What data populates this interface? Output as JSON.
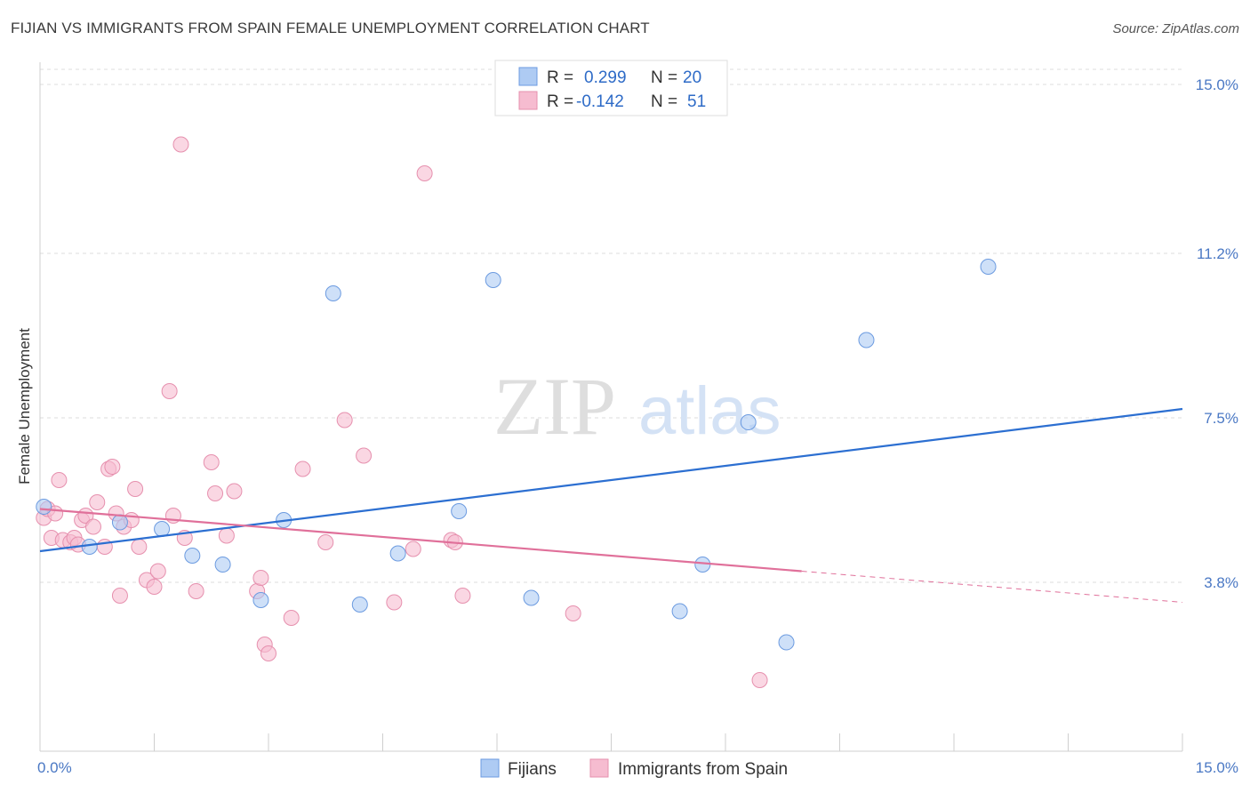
{
  "header": {
    "title": "FIJIAN VS IMMIGRANTS FROM SPAIN FEMALE UNEMPLOYMENT CORRELATION CHART",
    "source": "Source: ZipAtlas.com"
  },
  "watermark": {
    "zip": "ZIP",
    "atlas": "atlas"
  },
  "colors": {
    "fijians_fill": "#aecbf3",
    "fijians_stroke": "#6c9be0",
    "fijians_line": "#2c6fd1",
    "spain_fill": "#f6bcd0",
    "spain_stroke": "#e690ae",
    "spain_line": "#e0709a",
    "grid": "#dddddd",
    "axis_text": "#4a78c4"
  },
  "legend": {
    "r_label": "R =",
    "n_label": "N =",
    "fijians": {
      "r": "0.299",
      "n": "20"
    },
    "spain": {
      "r": "-0.142",
      "n": "51"
    }
  },
  "chart_data": {
    "type": "scatter",
    "title": "FIJIAN VS IMMIGRANTS FROM SPAIN FEMALE UNEMPLOYMENT CORRELATION CHART",
    "xlabel": "",
    "ylabel": "Female Unemployment",
    "xlim": [
      0,
      15
    ],
    "ylim": [
      0,
      15.5
    ],
    "x_tick_labels": [
      "0.0%",
      "15.0%"
    ],
    "y_ticks": [
      3.8,
      7.5,
      11.2,
      15.0
    ],
    "y_tick_labels": [
      "3.8%",
      "7.5%",
      "11.2%",
      "15.0%"
    ],
    "series": [
      {
        "name": "Fijians",
        "points": [
          [
            0.05,
            5.5
          ],
          [
            0.65,
            4.6
          ],
          [
            1.05,
            5.15
          ],
          [
            1.6,
            5.0
          ],
          [
            2.0,
            4.4
          ],
          [
            2.4,
            4.2
          ],
          [
            2.9,
            3.4
          ],
          [
            3.2,
            5.2
          ],
          [
            3.85,
            10.3
          ],
          [
            4.2,
            3.3
          ],
          [
            4.7,
            4.45
          ],
          [
            5.5,
            5.4
          ],
          [
            5.95,
            10.6
          ],
          [
            6.45,
            3.45
          ],
          [
            8.4,
            3.15
          ],
          [
            8.7,
            4.2
          ],
          [
            9.3,
            7.4
          ],
          [
            9.8,
            2.45
          ],
          [
            10.85,
            9.25
          ],
          [
            12.45,
            10.9
          ]
        ],
        "trend": {
          "x": [
            0,
            15
          ],
          "y": [
            4.5,
            7.7
          ]
        }
      },
      {
        "name": "Immigrants from Spain",
        "points": [
          [
            0.05,
            5.25
          ],
          [
            0.1,
            5.45
          ],
          [
            0.15,
            4.8
          ],
          [
            0.2,
            5.35
          ],
          [
            0.25,
            6.1
          ],
          [
            0.3,
            4.75
          ],
          [
            0.4,
            4.7
          ],
          [
            0.45,
            4.8
          ],
          [
            0.5,
            4.65
          ],
          [
            0.55,
            5.2
          ],
          [
            0.6,
            5.3
          ],
          [
            0.7,
            5.05
          ],
          [
            0.75,
            5.6
          ],
          [
            0.85,
            4.6
          ],
          [
            0.9,
            6.35
          ],
          [
            0.95,
            6.4
          ],
          [
            1.0,
            5.35
          ],
          [
            1.05,
            3.5
          ],
          [
            1.1,
            5.05
          ],
          [
            1.2,
            5.2
          ],
          [
            1.25,
            5.9
          ],
          [
            1.3,
            4.6
          ],
          [
            1.4,
            3.85
          ],
          [
            1.5,
            3.7
          ],
          [
            1.55,
            4.05
          ],
          [
            1.7,
            8.1
          ],
          [
            1.75,
            5.3
          ],
          [
            1.85,
            13.65
          ],
          [
            1.9,
            4.8
          ],
          [
            2.05,
            3.6
          ],
          [
            2.25,
            6.5
          ],
          [
            2.3,
            5.8
          ],
          [
            2.45,
            4.85
          ],
          [
            2.55,
            5.85
          ],
          [
            2.85,
            3.6
          ],
          [
            2.9,
            3.9
          ],
          [
            2.95,
            2.4
          ],
          [
            3.0,
            2.2
          ],
          [
            3.3,
            3.0
          ],
          [
            3.45,
            6.35
          ],
          [
            3.75,
            4.7
          ],
          [
            4.0,
            7.45
          ],
          [
            4.25,
            6.65
          ],
          [
            4.65,
            3.35
          ],
          [
            4.9,
            4.55
          ],
          [
            5.05,
            13.0
          ],
          [
            5.4,
            4.75
          ],
          [
            5.55,
            3.5
          ],
          [
            7.0,
            3.1
          ],
          [
            9.45,
            1.6
          ],
          [
            5.45,
            4.7
          ]
        ],
        "trend": {
          "x": [
            0,
            10.0
          ],
          "y": [
            5.45,
            4.05
          ]
        },
        "trend_extension": {
          "x": [
            10.0,
            15
          ],
          "y": [
            4.05,
            3.35
          ]
        }
      }
    ]
  },
  "bottom_legend": {
    "fijians": "Fijians",
    "spain": "Immigrants from Spain"
  }
}
